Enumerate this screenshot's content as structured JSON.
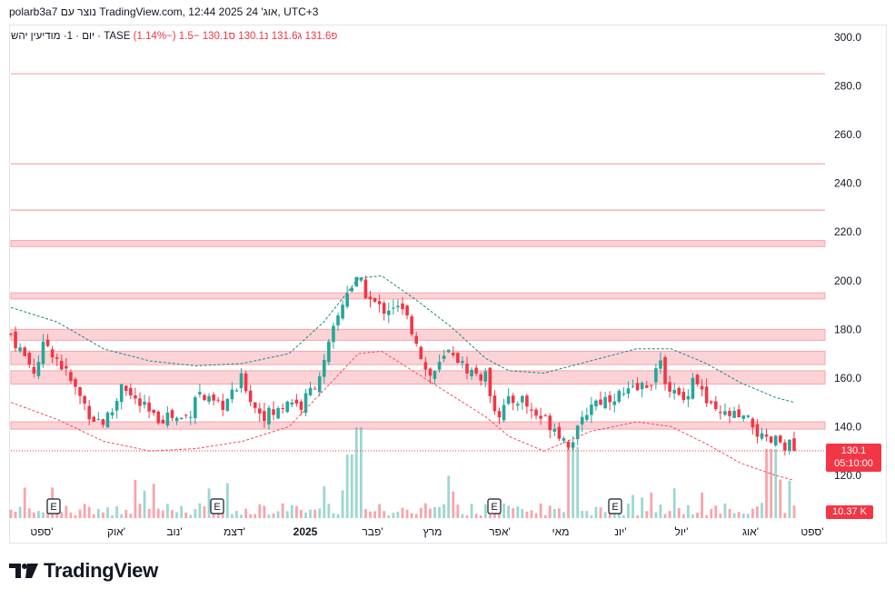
{
  "header": {
    "text": "polarb3a7 נוצר עם TradingView.com, 12:44 2025 אוג' 24, UTC+3"
  },
  "legend": {
    "symbol": "יום · 1· מודיעין יהש · TASE",
    "o_label": "פ",
    "o_value": "131.6",
    "h_label": "ג",
    "h_value": "131.6",
    "l_label": "נ",
    "l_value": "130.1",
    "c_label": "ס",
    "c_value": "130.1",
    "change": "−1.5 (−1.14%)"
  },
  "price_axis": {
    "ticks": [
      "300.0",
      "280.0",
      "260.0",
      "240.0",
      "220.0",
      "200.0",
      "180.0",
      "160.0",
      "140.0",
      "120.0"
    ]
  },
  "last_price": {
    "value": "130.1",
    "countdown": "05:10:00"
  },
  "last_volume": "10.37 K",
  "time_axis": {
    "labels": [
      "ספט'",
      "אוק'",
      "נוב'",
      "דצמ'",
      "2025",
      "פבר'",
      "מרץ",
      "אפר'",
      "מאי",
      "יונ'",
      "יול'",
      "אוג'",
      "ספט'"
    ]
  },
  "earnings_markers": [
    "E",
    "E",
    "E",
    "E"
  ],
  "footer": {
    "brand": "TradingView"
  },
  "colors": {
    "up": "#26a69a",
    "down": "#f23645",
    "zone_fill": "#fbd3d6",
    "zone_line": "#f7a5ab",
    "upper_band": "#1b8a80",
    "lower_band": "#f05060",
    "text": "#131722"
  },
  "chart_data": {
    "type": "candlestick",
    "y_axis": {
      "min": 112,
      "max": 304,
      "ticks": [
        300,
        280,
        260,
        240,
        220,
        200,
        180,
        160,
        140,
        120
      ]
    },
    "last": 130.1,
    "resistance_lines": [
      285,
      248,
      229
    ],
    "zones": [
      [
        214,
        216.5
      ],
      [
        192.5,
        195
      ],
      [
        175.5,
        180
      ],
      [
        165.5,
        171
      ],
      [
        157.5,
        163
      ],
      [
        139,
        142
      ]
    ],
    "close_series": [
      {
        "t": 0,
        "c": 178
      },
      {
        "t": 5,
        "c": 170
      },
      {
        "t": 10,
        "c": 163
      },
      {
        "t": 15,
        "c": 175
      },
      {
        "t": 20,
        "c": 168
      },
      {
        "t": 28,
        "c": 155
      },
      {
        "t": 35,
        "c": 144
      },
      {
        "t": 40,
        "c": 142
      },
      {
        "t": 45,
        "c": 148
      },
      {
        "t": 48,
        "c": 160
      },
      {
        "t": 52,
        "c": 152
      },
      {
        "t": 57,
        "c": 148
      },
      {
        "t": 62,
        "c": 143
      },
      {
        "t": 68,
        "c": 145
      },
      {
        "t": 72,
        "c": 143
      },
      {
        "t": 77,
        "c": 145
      },
      {
        "t": 80,
        "c": 155
      },
      {
        "t": 85,
        "c": 150
      },
      {
        "t": 90,
        "c": 148
      },
      {
        "t": 95,
        "c": 152
      },
      {
        "t": 100,
        "c": 160
      },
      {
        "t": 105,
        "c": 148
      },
      {
        "t": 110,
        "c": 145
      },
      {
        "t": 115,
        "c": 146
      },
      {
        "t": 120,
        "c": 152
      },
      {
        "t": 125,
        "c": 148
      },
      {
        "t": 130,
        "c": 156
      },
      {
        "t": 135,
        "c": 165
      },
      {
        "t": 140,
        "c": 182
      },
      {
        "t": 145,
        "c": 196
      },
      {
        "t": 150,
        "c": 200
      },
      {
        "t": 155,
        "c": 192
      },
      {
        "t": 160,
        "c": 188
      },
      {
        "t": 165,
        "c": 190
      },
      {
        "t": 170,
        "c": 186
      },
      {
        "t": 175,
        "c": 176
      },
      {
        "t": 180,
        "c": 160
      },
      {
        "t": 185,
        "c": 165
      },
      {
        "t": 190,
        "c": 172
      },
      {
        "t": 195,
        "c": 165
      },
      {
        "t": 200,
        "c": 162
      },
      {
        "t": 205,
        "c": 160
      },
      {
        "t": 210,
        "c": 145
      },
      {
        "t": 215,
        "c": 150
      },
      {
        "t": 220,
        "c": 152
      },
      {
        "t": 225,
        "c": 146
      },
      {
        "t": 230,
        "c": 143
      },
      {
        "t": 235,
        "c": 140
      },
      {
        "t": 240,
        "c": 133
      },
      {
        "t": 245,
        "c": 138
      },
      {
        "t": 250,
        "c": 150
      },
      {
        "t": 255,
        "c": 151
      },
      {
        "t": 260,
        "c": 153
      },
      {
        "t": 265,
        "c": 153
      },
      {
        "t": 270,
        "c": 155
      },
      {
        "t": 275,
        "c": 158
      },
      {
        "t": 280,
        "c": 165
      },
      {
        "t": 285,
        "c": 155
      },
      {
        "t": 290,
        "c": 150
      },
      {
        "t": 295,
        "c": 162
      },
      {
        "t": 300,
        "c": 150
      },
      {
        "t": 305,
        "c": 144
      },
      {
        "t": 310,
        "c": 145
      },
      {
        "t": 315,
        "c": 143
      },
      {
        "t": 320,
        "c": 141
      },
      {
        "t": 325,
        "c": 133
      },
      {
        "t": 330,
        "c": 134
      },
      {
        "t": 335,
        "c": 133
      },
      {
        "t": 338,
        "c": 130.1
      }
    ],
    "upper_band": [
      [
        0,
        189
      ],
      [
        20,
        183
      ],
      [
        40,
        172
      ],
      [
        60,
        167
      ],
      [
        80,
        165
      ],
      [
        100,
        166
      ],
      [
        120,
        170
      ],
      [
        135,
        183
      ],
      [
        150,
        201
      ],
      [
        160,
        202
      ],
      [
        175,
        192
      ],
      [
        190,
        181
      ],
      [
        205,
        168
      ],
      [
        215,
        163
      ],
      [
        230,
        162
      ],
      [
        250,
        167
      ],
      [
        270,
        172
      ],
      [
        285,
        172
      ],
      [
        300,
        166
      ],
      [
        315,
        158
      ],
      [
        330,
        152
      ],
      [
        338,
        150
      ]
    ],
    "lower_band": [
      [
        0,
        150
      ],
      [
        20,
        143
      ],
      [
        40,
        134
      ],
      [
        60,
        130
      ],
      [
        80,
        131
      ],
      [
        100,
        134
      ],
      [
        120,
        140
      ],
      [
        135,
        155
      ],
      [
        150,
        170
      ],
      [
        160,
        171
      ],
      [
        175,
        162
      ],
      [
        190,
        153
      ],
      [
        205,
        144
      ],
      [
        215,
        136
      ],
      [
        230,
        130
      ],
      [
        250,
        138
      ],
      [
        270,
        142
      ],
      [
        285,
        140
      ],
      [
        300,
        133
      ],
      [
        315,
        125
      ],
      [
        330,
        120
      ],
      [
        338,
        118
      ]
    ]
  }
}
